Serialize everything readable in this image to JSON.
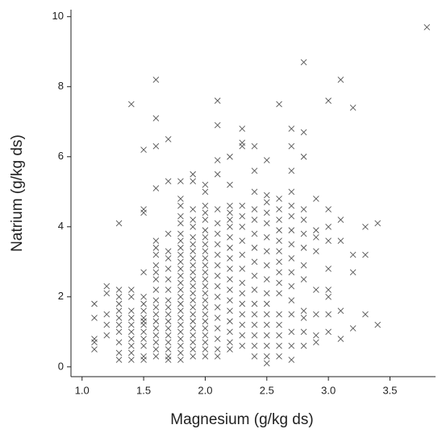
{
  "chart_data": {
    "type": "scatter",
    "x_label": "Magnesium (g/kg ds)",
    "y_label": "Natrium (g/kg ds)",
    "color": "#555555",
    "xlim": [
      0.91,
      3.87
    ],
    "ylim": [
      -0.28,
      10.2
    ],
    "xticks": [
      {
        "value": 1,
        "label": "1.0"
      },
      {
        "value": 1.5,
        "label": "1.5"
      },
      {
        "value": 2,
        "label": "2.0"
      },
      {
        "value": 2.5,
        "label": "2.5"
      },
      {
        "value": 3,
        "label": "3.0"
      },
      {
        "value": 3.5,
        "label": "3.5"
      }
    ],
    "yticks": [
      0,
      2,
      4,
      6,
      8,
      10
    ],
    "x": [
      1.1,
      1.1,
      1.1,
      1.1,
      1.1,
      1.2,
      1.2,
      1.2,
      1.2,
      1.2,
      1.3,
      1.3,
      1.3,
      1.3,
      1.3,
      1.3,
      1.3,
      1.3,
      1.3,
      1.3,
      1.3,
      1.4,
      1.4,
      1.4,
      1.4,
      1.4,
      1.4,
      1.4,
      1.4,
      1.4,
      1.4,
      1.4,
      1.5,
      1.5,
      1.5,
      1.5,
      1.5,
      1.5,
      1.5,
      1.5,
      1.5,
      1.5,
      1.5,
      1.5,
      1.5,
      1.5,
      1.5,
      1.6,
      1.6,
      1.6,
      1.6,
      1.6,
      1.6,
      1.6,
      1.6,
      1.6,
      1.6,
      1.6,
      1.6,
      1.6,
      1.6,
      1.6,
      1.6,
      1.6,
      1.6,
      1.6,
      1.6,
      1.7,
      1.7,
      1.7,
      1.7,
      1.7,
      1.7,
      1.7,
      1.7,
      1.7,
      1.7,
      1.7,
      1.7,
      1.7,
      1.7,
      1.7,
      1.7,
      1.7,
      1.7,
      1.8,
      1.8,
      1.8,
      1.8,
      1.8,
      1.8,
      1.8,
      1.8,
      1.8,
      1.8,
      1.8,
      1.8,
      1.8,
      1.8,
      1.8,
      1.8,
      1.8,
      1.8,
      1.8,
      1.8,
      1.8,
      1.8,
      1.8,
      1.8,
      1.9,
      1.9,
      1.9,
      1.9,
      1.9,
      1.9,
      1.9,
      1.9,
      1.9,
      1.9,
      1.9,
      1.9,
      1.9,
      1.9,
      1.9,
      1.9,
      1.9,
      1.9,
      1.9,
      1.9,
      1.9,
      1.9,
      1.9,
      2.0,
      2.0,
      2.0,
      2.0,
      2.0,
      2.0,
      2.0,
      2.0,
      2.0,
      2.0,
      2.0,
      2.0,
      2.0,
      2.0,
      2.0,
      2.0,
      2.0,
      2.0,
      2.0,
      2.0,
      2.0,
      2.0,
      2.0,
      2.0,
      2.1,
      2.1,
      2.1,
      2.1,
      2.1,
      2.1,
      2.1,
      2.1,
      2.1,
      2.1,
      2.1,
      2.1,
      2.1,
      2.1,
      2.1,
      2.1,
      2.1,
      2.1,
      2.1,
      2.2,
      2.2,
      2.2,
      2.2,
      2.2,
      2.2,
      2.2,
      2.2,
      2.2,
      2.2,
      2.2,
      2.2,
      2.2,
      2.2,
      2.2,
      2.2,
      2.2,
      2.2,
      2.3,
      2.3,
      2.3,
      2.3,
      2.3,
      2.3,
      2.3,
      2.3,
      2.3,
      2.3,
      2.3,
      2.3,
      2.3,
      2.3,
      2.3,
      2.3,
      2.4,
      2.4,
      2.4,
      2.4,
      2.4,
      2.4,
      2.4,
      2.4,
      2.4,
      2.4,
      2.4,
      2.4,
      2.4,
      2.4,
      2.4,
      2.4,
      2.5,
      2.5,
      2.5,
      2.5,
      2.5,
      2.5,
      2.5,
      2.5,
      2.5,
      2.5,
      2.5,
      2.5,
      2.5,
      2.5,
      2.5,
      2.5,
      2.5,
      2.6,
      2.6,
      2.6,
      2.6,
      2.6,
      2.6,
      2.6,
      2.6,
      2.6,
      2.6,
      2.6,
      2.6,
      2.6,
      2.6,
      2.6,
      2.6,
      2.7,
      2.7,
      2.7,
      2.7,
      2.7,
      2.7,
      2.7,
      2.7,
      2.7,
      2.7,
      2.7,
      2.7,
      2.7,
      2.7,
      2.7,
      2.7,
      2.8,
      2.8,
      2.8,
      2.8,
      2.8,
      2.8,
      2.8,
      2.8,
      2.8,
      2.8,
      2.8,
      2.8,
      2.8,
      2.9,
      2.9,
      2.9,
      2.9,
      2.9,
      2.9,
      2.9,
      2.9,
      3.0,
      3.0,
      3.0,
      3.0,
      3.0,
      3.0,
      3.0,
      3.0,
      3.0,
      3.1,
      3.1,
      3.1,
      3.1,
      3.1,
      3.2,
      3.2,
      3.2,
      3.2,
      3.3,
      3.3,
      3.3,
      3.4,
      3.4,
      3.8
    ],
    "values": [
      1.8,
      1.4,
      0.8,
      0.7,
      0.5,
      2.3,
      2.1,
      1.5,
      1.2,
      0.9,
      4.1,
      2.2,
      2.0,
      1.8,
      1.6,
      1.4,
      1.2,
      1.0,
      0.7,
      0.4,
      0.2,
      7.5,
      2.2,
      2.0,
      1.6,
      1.4,
      1.2,
      1.0,
      0.8,
      0.6,
      0.4,
      0.2,
      6.2,
      4.5,
      4.4,
      2.7,
      2.0,
      1.8,
      1.6,
      1.4,
      1.3,
      1.2,
      1.0,
      0.8,
      0.6,
      0.3,
      0.2,
      8.2,
      7.1,
      6.3,
      5.1,
      3.6,
      3.4,
      3.2,
      2.9,
      2.7,
      2.5,
      2.2,
      1.9,
      1.7,
      1.5,
      1.3,
      1.1,
      0.9,
      0.7,
      0.5,
      0.3,
      6.5,
      5.3,
      3.8,
      3.3,
      3.1,
      2.8,
      2.5,
      2.2,
      1.9,
      1.7,
      1.5,
      1.3,
      1.1,
      0.9,
      0.7,
      0.5,
      0.3,
      0.2,
      5.3,
      4.8,
      4.6,
      4.3,
      4.1,
      3.8,
      3.6,
      3.4,
      3.2,
      3.0,
      2.8,
      2.6,
      2.4,
      2.2,
      2.0,
      1.8,
      1.6,
      1.4,
      1.2,
      1.0,
      0.8,
      0.6,
      0.4,
      0.2,
      5.5,
      5.3,
      4.5,
      4.2,
      4.0,
      3.7,
      3.5,
      3.3,
      3.1,
      2.9,
      2.7,
      2.5,
      2.3,
      2.1,
      1.9,
      1.7,
      1.5,
      1.3,
      1.1,
      0.9,
      0.7,
      0.5,
      0.3,
      5.2,
      5.0,
      4.6,
      4.4,
      4.2,
      3.9,
      3.7,
      3.5,
      3.3,
      3.1,
      2.9,
      2.7,
      2.5,
      2.3,
      2.1,
      1.9,
      1.7,
      1.5,
      1.3,
      1.1,
      0.9,
      0.7,
      0.5,
      0.3,
      7.6,
      6.9,
      5.9,
      5.5,
      4.5,
      4.1,
      3.8,
      3.5,
      3.2,
      2.9,
      2.6,
      2.3,
      2.0,
      1.7,
      1.4,
      1.1,
      0.8,
      0.5,
      0.3,
      6.0,
      5.2,
      4.6,
      4.4,
      4.2,
      4.0,
      3.7,
      3.4,
      3.1,
      2.8,
      2.5,
      2.2,
      1.9,
      1.6,
      1.3,
      1.0,
      0.7,
      0.5,
      6.8,
      6.4,
      6.3,
      4.6,
      4.3,
      4.0,
      3.6,
      3.2,
      2.8,
      2.4,
      2.1,
      1.8,
      1.5,
      1.2,
      0.9,
      0.6,
      6.3,
      5.6,
      5.0,
      4.5,
      4.2,
      3.8,
      3.4,
      3.0,
      2.6,
      2.2,
      1.8,
      1.5,
      1.2,
      0.9,
      0.6,
      0.3,
      5.9,
      4.9,
      4.7,
      4.4,
      4.1,
      3.7,
      3.3,
      2.9,
      2.5,
      2.1,
      1.8,
      1.5,
      1.2,
      0.9,
      0.6,
      0.3,
      0.1,
      7.5,
      4.8,
      4.5,
      4.2,
      3.9,
      3.6,
      3.3,
      3.0,
      2.7,
      2.4,
      2.1,
      1.5,
      1.2,
      0.9,
      0.6,
      0.3,
      6.8,
      6.3,
      5.6,
      5.0,
      4.6,
      4.3,
      3.9,
      3.5,
      3.1,
      2.7,
      2.3,
      1.9,
      1.5,
      1.0,
      0.6,
      0.2,
      8.7,
      6.7,
      6.0,
      4.5,
      4.2,
      3.8,
      3.4,
      2.9,
      2.5,
      1.6,
      1.4,
      1.0,
      0.6,
      4.8,
      3.9,
      3.7,
      3.3,
      2.2,
      1.5,
      0.9,
      0.7,
      7.6,
      4.5,
      4.0,
      3.6,
      2.8,
      2.2,
      2.0,
      1.5,
      1.0,
      8.2,
      4.2,
      3.6,
      1.6,
      0.8,
      7.4,
      3.2,
      2.7,
      1.1,
      4.0,
      3.2,
      1.5,
      4.1,
      1.2,
      9.7
    ]
  }
}
